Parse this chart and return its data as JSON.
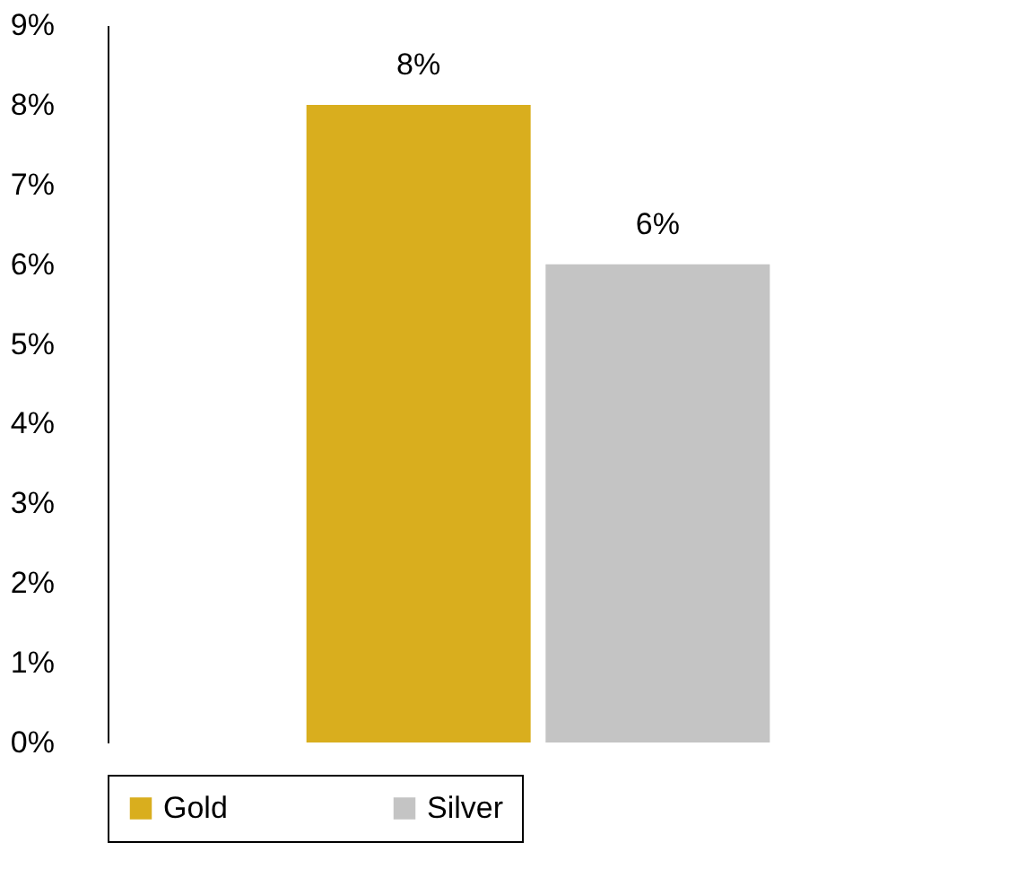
{
  "chart_data": {
    "type": "bar",
    "categories": [
      null
    ],
    "series": [
      {
        "name": "Gold",
        "color": "#d9ae1e",
        "values": [
          8
        ],
        "value_labels": [
          "8%"
        ]
      },
      {
        "name": "Silver",
        "color": "#c4c4c4",
        "values": [
          6
        ],
        "value_labels": [
          "6%"
        ]
      }
    ],
    "ylim": [
      0,
      9
    ],
    "yticks": [
      {
        "value": 0,
        "label": "0%"
      },
      {
        "value": 1,
        "label": "1%"
      },
      {
        "value": 2,
        "label": "2%"
      },
      {
        "value": 3,
        "label": "3%"
      },
      {
        "value": 4,
        "label": "4%"
      },
      {
        "value": 5,
        "label": "5%"
      },
      {
        "value": 6,
        "label": "6%"
      },
      {
        "value": 7,
        "label": "7%"
      },
      {
        "value": 8,
        "label": "8%"
      },
      {
        "value": 9,
        "label": "9%"
      }
    ],
    "grid": false,
    "legend": "bottom"
  }
}
